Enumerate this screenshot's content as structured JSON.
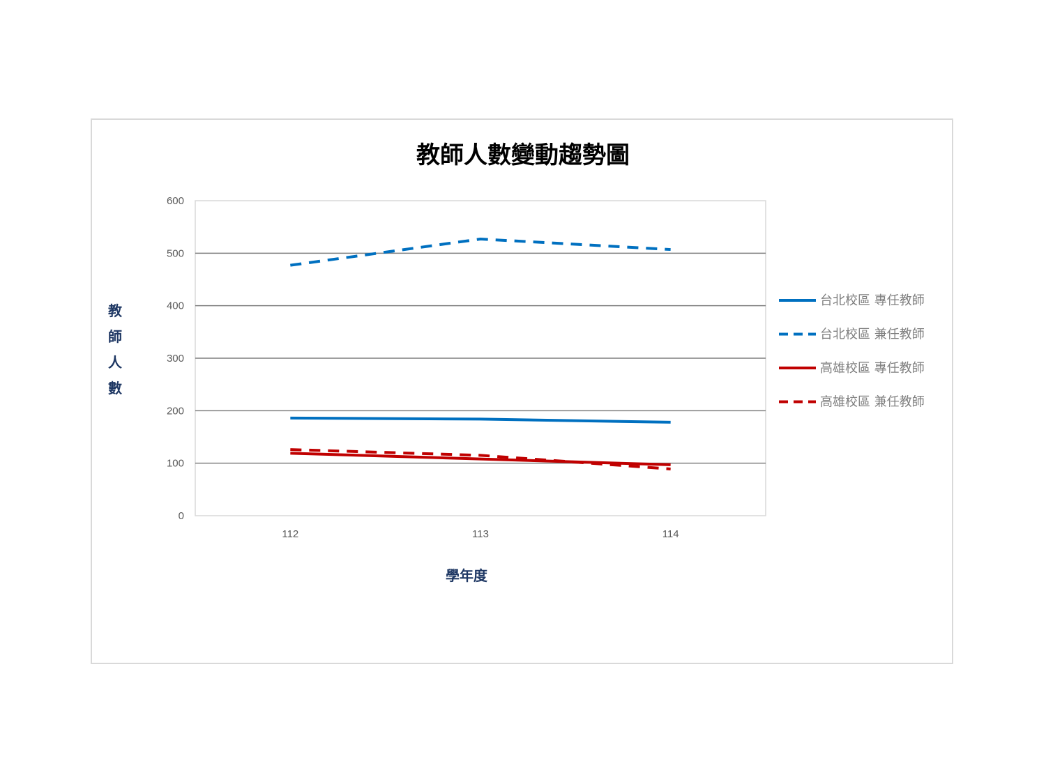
{
  "chart_data": {
    "type": "line",
    "title": "教師人數變動趨勢圖",
    "xlabel": "學年度",
    "ylabel": "教師人數",
    "categories": [
      "112",
      "113",
      "114"
    ],
    "ylim": [
      0,
      600
    ],
    "yticks": [
      "0",
      "100",
      "200",
      "300",
      "400",
      "500",
      "600"
    ],
    "grid": true,
    "legend_position": "right",
    "series": [
      {
        "name": "台北校區 專任教師",
        "values": [
          186,
          184,
          178
        ],
        "color": "#0070c0",
        "dashed": false
      },
      {
        "name": "台北校區 兼任教師",
        "values": [
          477,
          527,
          507
        ],
        "color": "#0070c0",
        "dashed": true
      },
      {
        "name": "高雄校區 專任教師",
        "values": [
          119,
          108,
          97
        ],
        "color": "#c00000",
        "dashed": false
      },
      {
        "name": "高雄校區 兼任教師",
        "values": [
          126,
          115,
          89
        ],
        "color": "#c00000",
        "dashed": true
      }
    ]
  }
}
